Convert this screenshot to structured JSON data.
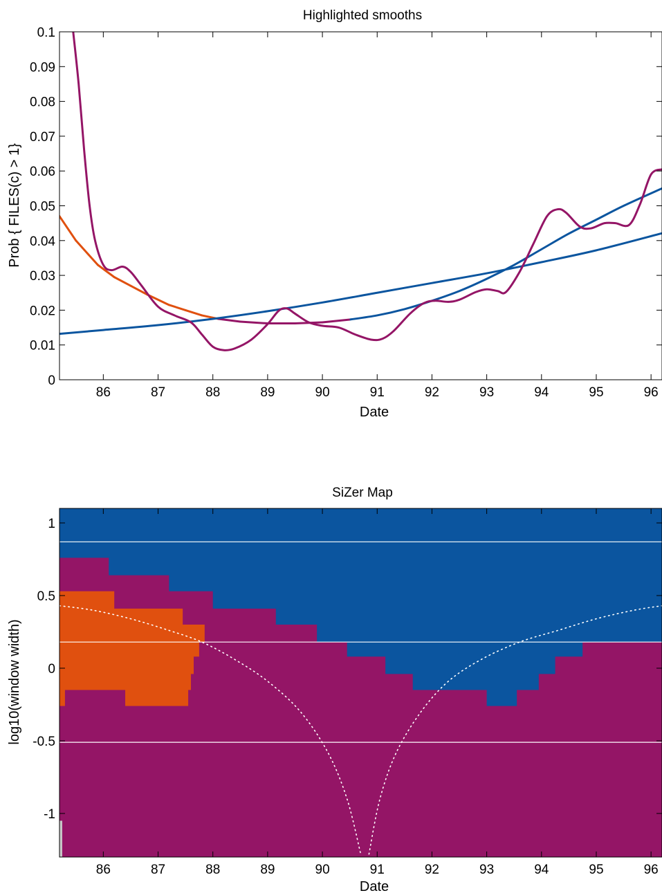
{
  "chart_data": [
    {
      "type": "line",
      "title": "Highlighted smooths",
      "xlabel": "Date",
      "ylabel": "Prob { FILES(c) > 1}",
      "xlim": [
        85.2,
        96.2
      ],
      "ylim": [
        0,
        0.1
      ],
      "x_ticks": [
        "86",
        "87",
        "88",
        "89",
        "90",
        "91",
        "92",
        "93",
        "94",
        "95",
        "96"
      ],
      "y_ticks": [
        "0",
        "0.01",
        "0.02",
        "0.03",
        "0.04",
        "0.05",
        "0.06",
        "0.07",
        "0.08",
        "0.09",
        "0.1"
      ],
      "colors": {
        "decreasing": "#e0500f",
        "increasing": "#0b559f",
        "insignificant": "#941566"
      },
      "series": [
        {
          "x": [
            85.2,
            85.5,
            85.9,
            86.2,
            86.5,
            86.8,
            87.2,
            87.5,
            87.8,
            88.1,
            88.5,
            89.0,
            89.5,
            90.0,
            90.5
          ],
          "values": [
            0.047,
            0.04,
            0.033,
            0.0295,
            0.027,
            0.0245,
            0.0215,
            0.02,
            0.0185,
            0.0175,
            0.0167,
            0.0162,
            0.0162,
            0.0165,
            0.0173
          ],
          "segment_colors": [
            "decreasing",
            "decreasing",
            "decreasing",
            "decreasing",
            "decreasing",
            "decreasing",
            "decreasing",
            "decreasing",
            "decreasing",
            "insignificant",
            "insignificant",
            "insignificant",
            "insignificant",
            "insignificant"
          ]
        },
        {
          "x": [
            85.2,
            86.0,
            87.0,
            88.0,
            89.0,
            90.0,
            91.0,
            92.0,
            93.0,
            94.0,
            95.0,
            96.2
          ],
          "values": [
            0.0132,
            0.0143,
            0.0157,
            0.0175,
            0.0197,
            0.0222,
            0.025,
            0.0278,
            0.0306,
            0.0338,
            0.0372,
            0.0421
          ],
          "color": "increasing"
        },
        {
          "x": [
            90.5,
            91.0,
            91.5,
            92.0,
            92.5,
            93.0,
            93.5,
            94.0,
            94.5,
            95.0,
            95.5,
            96.2
          ],
          "values": [
            0.0173,
            0.0185,
            0.0203,
            0.0227,
            0.0255,
            0.029,
            0.033,
            0.0375,
            0.042,
            0.046,
            0.05,
            0.055
          ],
          "color": "increasing"
        },
        {
          "x": [
            85.45,
            85.55,
            85.65,
            85.75,
            85.85,
            86.0,
            86.15,
            86.35,
            86.5,
            86.7,
            87.0,
            87.3,
            87.6,
            87.8,
            88.0,
            88.2,
            88.4,
            88.7,
            89.0,
            89.2,
            89.35,
            89.5,
            89.75,
            90.0,
            90.3,
            90.6,
            90.9,
            91.1,
            91.3,
            91.6,
            91.85,
            92.05,
            92.3,
            92.5,
            92.8,
            93.0,
            93.2,
            93.35,
            93.6,
            93.85,
            94.1,
            94.3,
            94.45,
            94.7,
            94.9,
            95.15,
            95.35,
            95.6,
            95.8,
            96.0,
            96.2
          ],
          "values": [
            0.1,
            0.085,
            0.066,
            0.05,
            0.04,
            0.033,
            0.0315,
            0.0325,
            0.031,
            0.027,
            0.021,
            0.0185,
            0.0165,
            0.013,
            0.0095,
            0.0085,
            0.009,
            0.0115,
            0.016,
            0.0198,
            0.0205,
            0.019,
            0.0165,
            0.0155,
            0.015,
            0.013,
            0.0115,
            0.0118,
            0.014,
            0.019,
            0.022,
            0.0227,
            0.0224,
            0.023,
            0.0252,
            0.026,
            0.0255,
            0.0252,
            0.031,
            0.039,
            0.047,
            0.049,
            0.048,
            0.044,
            0.0435,
            0.045,
            0.045,
            0.0445,
            0.0505,
            0.059,
            0.0605
          ],
          "color": "insignificant"
        }
      ]
    },
    {
      "type": "heatmap",
      "title": "SiZer Map",
      "xlabel": "Date",
      "ylabel": "log10(window width)",
      "xlim": [
        85.2,
        96.2
      ],
      "ylim": [
        -1.3,
        1.1
      ],
      "x_ticks": [
        "86",
        "87",
        "88",
        "89",
        "90",
        "91",
        "92",
        "93",
        "94",
        "95",
        "96"
      ],
      "y_ticks": [
        "1",
        "0.5",
        "0",
        "-0.5",
        "-1"
      ],
      "colors": {
        "decreasing": "#e0500f",
        "increasing": "#0b559f",
        "insignificant": "#941566",
        "sparse": "#c8c8c8",
        "guide": "#ffffff"
      },
      "background": "insignificant",
      "increasing_boundary": {
        "x": [
          85.2,
          86.1,
          86.1,
          87.2,
          87.2,
          88.0,
          88.0,
          89.15,
          89.15,
          89.9,
          89.9,
          90.45,
          90.45,
          91.15,
          91.15,
          91.65,
          91.65,
          93.0,
          93.0,
          93.55,
          93.55,
          93.95,
          93.95,
          94.25,
          94.25,
          94.75,
          94.75,
          95.7,
          95.7,
          96.2
        ],
        "values": [
          0.76,
          0.76,
          0.64,
          0.64,
          0.53,
          0.53,
          0.41,
          0.41,
          0.3,
          0.3,
          0.18,
          0.18,
          0.08,
          0.08,
          -0.04,
          -0.04,
          -0.15,
          -0.15,
          -0.26,
          -0.26,
          -0.15,
          -0.15,
          -0.04,
          -0.04,
          0.08,
          0.08,
          0.18,
          0.18,
          0.18,
          0.18
        ]
      },
      "decreasing_region": {
        "x": [
          85.2,
          86.2,
          86.2,
          87.45,
          87.45,
          87.85,
          87.85,
          87.75,
          87.75,
          87.65,
          87.65,
          87.6,
          87.6,
          87.55,
          87.55,
          86.4,
          86.4,
          85.3,
          85.3,
          85.2
        ],
        "values": [
          0.53,
          0.53,
          0.41,
          0.41,
          0.3,
          0.3,
          0.18,
          0.18,
          0.08,
          0.08,
          -0.04,
          -0.04,
          -0.15,
          -0.15,
          -0.26,
          -0.26,
          -0.15,
          -0.15,
          -0.26,
          -0.26
        ]
      },
      "sparse_strip": {
        "x": [
          85.2,
          85.25
        ],
        "values": [
          -1.3,
          -1.05
        ]
      },
      "horizontal_guides": [
        0.87,
        0.18,
        -0.51
      ],
      "effective_window_curves": [
        {
          "x": [
            85.2,
            85.8,
            86.5,
            87.2,
            87.8,
            88.4,
            89.0,
            89.6,
            90.1,
            90.45,
            90.7
          ],
          "values": [
            0.43,
            0.4,
            0.34,
            0.26,
            0.18,
            0.06,
            -0.09,
            -0.3,
            -0.58,
            -0.9,
            -1.28
          ]
        },
        {
          "x": [
            90.85,
            91.05,
            91.35,
            91.8,
            92.3,
            92.9,
            93.6,
            94.3,
            95.0,
            95.7,
            96.2
          ],
          "values": [
            -1.28,
            -0.9,
            -0.58,
            -0.3,
            -0.09,
            0.06,
            0.18,
            0.26,
            0.34,
            0.4,
            0.43
          ]
        }
      ]
    }
  ]
}
